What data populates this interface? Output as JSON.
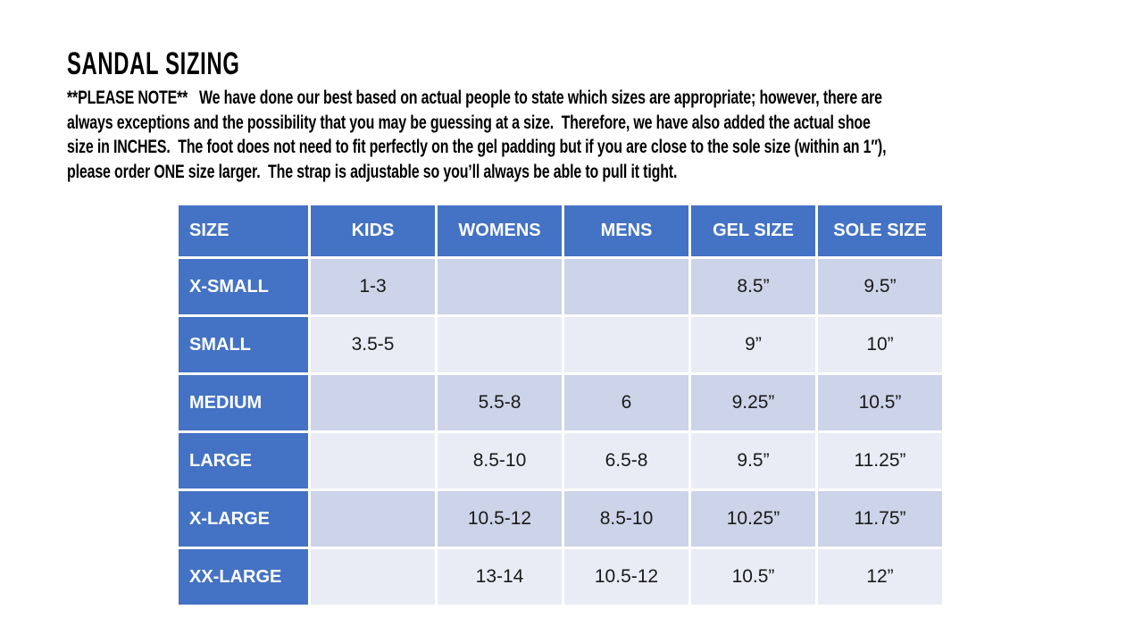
{
  "page": {
    "title": "SANDAL SIZING",
    "note_lines": [
      "**PLEASE NOTE**   We have done our best based on actual people to state which sizes are appropriate; however, there are",
      "always exceptions and the possibility that you may be guessing at a size.  Therefore, we have also added the actual shoe",
      "size in INCHES.  The foot does not need to fit perfectly on the gel padding but if you are close to the sole size (within an 1″),",
      "please order ONE size larger.  The strap is adjustable so you’ll always be able to pull it tight."
    ]
  },
  "table": {
    "columns": [
      "SIZE",
      "KIDS",
      "WOMENS",
      "MENS",
      "GEL SIZE",
      "SOLE SIZE"
    ],
    "rows": [
      {
        "cells": [
          "X-SMALL",
          "1-3",
          "",
          "",
          "8.5”",
          "9.5”"
        ]
      },
      {
        "cells": [
          "SMALL",
          "3.5-5",
          "",
          "",
          "9”",
          "10”"
        ]
      },
      {
        "cells": [
          "MEDIUM",
          "",
          "5.5-8",
          "6",
          "9.25”",
          "10.5”"
        ]
      },
      {
        "cells": [
          "LARGE",
          "",
          "8.5-10",
          "6.5-8",
          "9.5”",
          "11.25”"
        ]
      },
      {
        "cells": [
          "X-LARGE",
          "",
          "10.5-12",
          "8.5-10",
          "10.25”",
          "11.75”"
        ]
      },
      {
        "cells": [
          "XX-LARGE",
          "",
          "13-14",
          "10.5-12",
          "10.5”",
          "12”"
        ]
      }
    ]
  },
  "colors": {
    "brand_blue": "#4472C4",
    "band_dark": "#CDD3E8",
    "band_light": "#EAECF5",
    "header_text": "#FFFFFF",
    "cell_text": "#1A1A1A",
    "body_text": "#000000"
  }
}
